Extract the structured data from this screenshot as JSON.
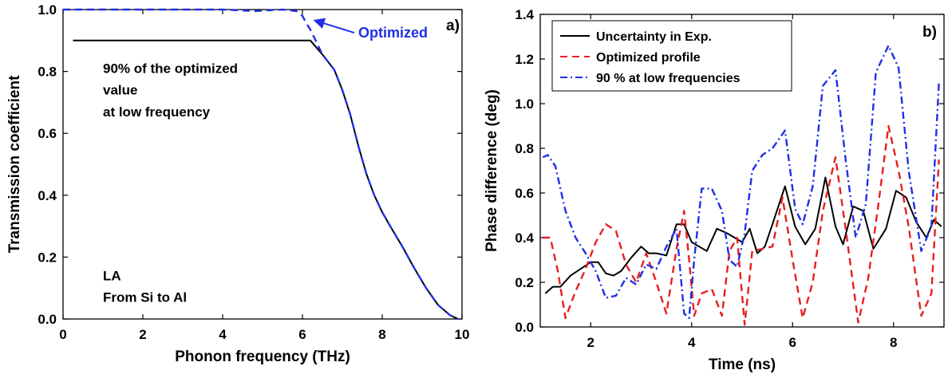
{
  "chart_data": [
    {
      "type": "line",
      "panel_label": "a)",
      "xlabel": "Phonon frequency (THz)",
      "ylabel": "Transmission coefficient",
      "xlim": [
        0,
        10
      ],
      "ylim": [
        0,
        1
      ],
      "xticks": [
        0,
        2,
        4,
        6,
        8,
        10
      ],
      "xtick_labels": [
        "0",
        "2",
        "4",
        "6",
        "8",
        "10"
      ],
      "yticks": [
        0,
        0.2,
        0.4,
        0.6,
        0.8,
        1.0
      ],
      "ytick_labels": [
        "0.0",
        "0.2",
        "0.4",
        "0.6",
        "0.8",
        "1.0"
      ],
      "grid": false,
      "annotations": {
        "arrow_label": "Optimized",
        "note_lines": [
          "90% of the optimized",
          "value",
          "at low frequency"
        ],
        "corner_lines": [
          "LA",
          "From Si to Al"
        ]
      },
      "series": [
        {
          "style": "solid",
          "color": "#000000",
          "x": [
            0.25,
            6.2,
            6.5,
            6.8,
            7.0,
            7.2,
            7.4,
            7.6,
            7.8,
            8.0,
            8.2,
            8.5,
            8.8,
            9.1,
            9.4,
            9.7,
            9.9
          ],
          "y": [
            0.9,
            0.9,
            0.855,
            0.805,
            0.74,
            0.66,
            0.56,
            0.47,
            0.4,
            0.345,
            0.3,
            0.235,
            0.165,
            0.1,
            0.045,
            0.012,
            0.0
          ]
        },
        {
          "style": "dashed",
          "color": "#1f2fe6",
          "x": [
            0.0,
            1.0,
            2.0,
            3.0,
            4.0,
            4.8,
            5.5,
            5.85,
            6.0,
            6.1,
            6.2,
            6.5,
            6.8,
            7.0,
            7.2,
            7.4,
            7.6,
            7.8,
            8.0,
            8.2,
            8.5,
            8.8,
            9.1,
            9.4,
            9.7,
            9.9
          ],
          "y": [
            1.0,
            1.0,
            1.0,
            1.0,
            1.0,
            0.995,
            1.0,
            0.995,
            0.98,
            0.955,
            0.935,
            0.855,
            0.805,
            0.74,
            0.66,
            0.56,
            0.47,
            0.4,
            0.345,
            0.3,
            0.235,
            0.165,
            0.1,
            0.045,
            0.012,
            0.0
          ]
        }
      ]
    },
    {
      "type": "line",
      "panel_label": "b)",
      "xlabel": "Time (ns)",
      "ylabel": "Phase difference (deg)",
      "xlim": [
        1,
        9
      ],
      "ylim": [
        0,
        1.4
      ],
      "xticks": [
        2,
        4,
        6,
        8
      ],
      "xtick_labels": [
        "2",
        "4",
        "6",
        "8"
      ],
      "yticks": [
        0,
        0.2,
        0.4,
        0.6,
        0.8,
        1.0,
        1.2,
        1.4
      ],
      "ytick_labels": [
        "0.0",
        "0.2",
        "0.4",
        "0.6",
        "0.8",
        "1.0",
        "1.2",
        "1.4"
      ],
      "grid": false,
      "legend_position": "top-left",
      "series": [
        {
          "name": "Uncertainty in Exp.",
          "style": "solid",
          "color": "#000000",
          "x": [
            1.1,
            1.25,
            1.4,
            1.6,
            1.8,
            2.0,
            2.15,
            2.3,
            2.45,
            2.6,
            2.8,
            3.0,
            3.15,
            3.3,
            3.5,
            3.7,
            3.85,
            4.0,
            4.15,
            4.3,
            4.5,
            4.7,
            4.85,
            5.0,
            5.15,
            5.3,
            5.45,
            5.6,
            5.85,
            6.05,
            6.25,
            6.45,
            6.65,
            6.85,
            7.0,
            7.2,
            7.4,
            7.6,
            7.85,
            8.05,
            8.25,
            8.45,
            8.65,
            8.8,
            8.95
          ],
          "y": [
            0.15,
            0.18,
            0.18,
            0.23,
            0.26,
            0.29,
            0.29,
            0.24,
            0.23,
            0.25,
            0.31,
            0.36,
            0.33,
            0.33,
            0.32,
            0.46,
            0.46,
            0.38,
            0.36,
            0.34,
            0.44,
            0.42,
            0.4,
            0.38,
            0.44,
            0.33,
            0.36,
            0.46,
            0.63,
            0.45,
            0.37,
            0.44,
            0.67,
            0.45,
            0.37,
            0.54,
            0.52,
            0.35,
            0.44,
            0.61,
            0.58,
            0.47,
            0.4,
            0.48,
            0.45
          ]
        },
        {
          "name": "Optimized profile",
          "style": "dashed",
          "color": "#e62020",
          "x": [
            1.05,
            1.2,
            1.35,
            1.5,
            1.7,
            1.9,
            2.1,
            2.3,
            2.5,
            2.7,
            2.9,
            3.1,
            3.3,
            3.5,
            3.7,
            3.85,
            3.95,
            4.05,
            4.2,
            4.4,
            4.6,
            4.75,
            4.9,
            5.05,
            5.2,
            5.4,
            5.6,
            5.8,
            6.0,
            6.2,
            6.4,
            6.6,
            6.85,
            7.05,
            7.3,
            7.5,
            7.7,
            7.9,
            8.1,
            8.3,
            8.55,
            8.75,
            8.9
          ],
          "y": [
            0.4,
            0.4,
            0.25,
            0.04,
            0.16,
            0.26,
            0.38,
            0.46,
            0.43,
            0.28,
            0.2,
            0.33,
            0.2,
            0.06,
            0.35,
            0.52,
            0.3,
            0.05,
            0.15,
            0.17,
            0.05,
            0.34,
            0.4,
            0.01,
            0.34,
            0.35,
            0.36,
            0.58,
            0.3,
            0.04,
            0.2,
            0.52,
            0.76,
            0.44,
            0.02,
            0.22,
            0.55,
            0.9,
            0.7,
            0.45,
            0.05,
            0.15,
            0.75
          ]
        },
        {
          "name": "90 % at low frequencies",
          "style": "dashdot",
          "color": "#1f2fe6",
          "x": [
            1.05,
            1.15,
            1.3,
            1.5,
            1.7,
            1.9,
            2.1,
            2.3,
            2.5,
            2.7,
            2.9,
            3.1,
            3.3,
            3.5,
            3.7,
            3.85,
            3.95,
            4.05,
            4.2,
            4.4,
            4.6,
            4.75,
            4.9,
            5.05,
            5.2,
            5.4,
            5.6,
            5.85,
            6.05,
            6.2,
            6.4,
            6.6,
            6.85,
            7.05,
            7.25,
            7.45,
            7.65,
            7.9,
            8.1,
            8.3,
            8.55,
            8.75,
            8.9
          ],
          "y": [
            0.76,
            0.77,
            0.72,
            0.52,
            0.4,
            0.33,
            0.25,
            0.13,
            0.14,
            0.22,
            0.19,
            0.28,
            0.26,
            0.36,
            0.44,
            0.06,
            0.04,
            0.3,
            0.62,
            0.62,
            0.52,
            0.3,
            0.27,
            0.42,
            0.7,
            0.77,
            0.8,
            0.88,
            0.53,
            0.46,
            0.63,
            1.08,
            1.15,
            0.75,
            0.4,
            0.55,
            1.14,
            1.26,
            1.16,
            0.7,
            0.34,
            0.45,
            1.1
          ]
        }
      ]
    }
  ]
}
